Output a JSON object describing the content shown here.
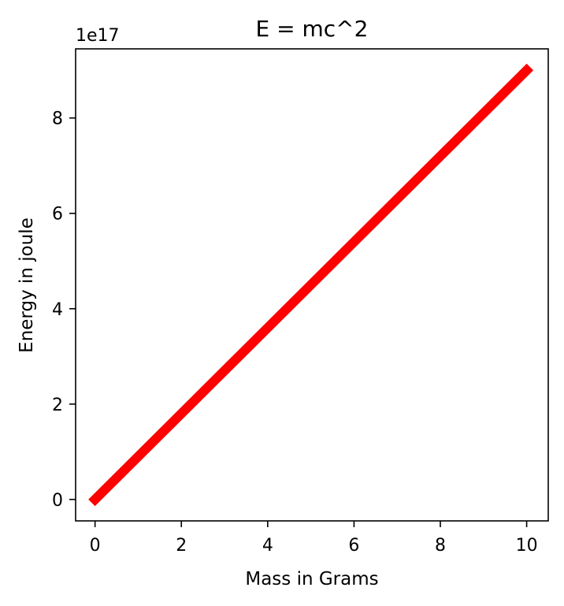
{
  "chart_data": {
    "type": "line",
    "title": "E = mc^2",
    "xlabel": "Mass in Grams",
    "ylabel": "Energy in joule",
    "y_offset_label": "1e17",
    "xlim": [
      -0.45,
      10.5
    ],
    "ylim": [
      -0.45,
      9.45
    ],
    "x_ticks": [
      0,
      2,
      4,
      6,
      8,
      10
    ],
    "x_tick_labels": [
      "0",
      "2",
      "4",
      "6",
      "8",
      "10"
    ],
    "y_ticks": [
      0,
      2,
      4,
      6,
      8
    ],
    "y_tick_labels": [
      "0",
      "2",
      "4",
      "6",
      "8"
    ],
    "grid": false,
    "series": [
      {
        "color": "#ff0000",
        "x": [
          0,
          10
        ],
        "y": [
          0,
          9
        ]
      }
    ]
  }
}
